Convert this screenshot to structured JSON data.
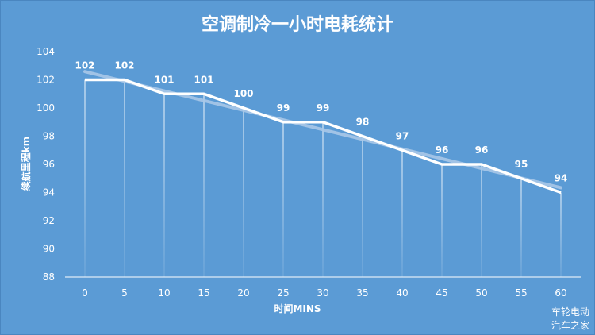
{
  "chart_data": {
    "type": "line",
    "title": "空调制冷一小时电耗统计",
    "xlabel": "时间MINS",
    "ylabel": "续航里程km",
    "x": [
      0,
      5,
      10,
      15,
      20,
      25,
      30,
      35,
      40,
      45,
      50,
      55,
      60
    ],
    "x_tick_labels": [
      "0",
      "5",
      "10",
      "15",
      "20",
      "25",
      "30",
      "35",
      "40",
      "45",
      "50",
      "55",
      "60"
    ],
    "y_tick_labels": [
      "88",
      "90",
      "92",
      "94",
      "96",
      "98",
      "100",
      "102",
      "104"
    ],
    "ylim": [
      88,
      104
    ],
    "series": [
      {
        "values": [
          102,
          102,
          101,
          101,
          100,
          99,
          99,
          98,
          97,
          96,
          96,
          95,
          94
        ],
        "data_labels": [
          "102",
          "102",
          "101",
          "101",
          "100",
          "99",
          "99",
          "98",
          "97",
          "96",
          "96",
          "95",
          "94"
        ]
      }
    ],
    "trendline": {
      "type": "linear"
    },
    "drop_lines": true,
    "grid": false,
    "legend": "none"
  },
  "watermark": {
    "line1": "车轮电动",
    "line2": "汽车之家"
  },
  "colors": {
    "background": "#5b9bd5",
    "line": "#ffffff",
    "trendline": "#a9c8e8",
    "text": "#ffffff"
  }
}
